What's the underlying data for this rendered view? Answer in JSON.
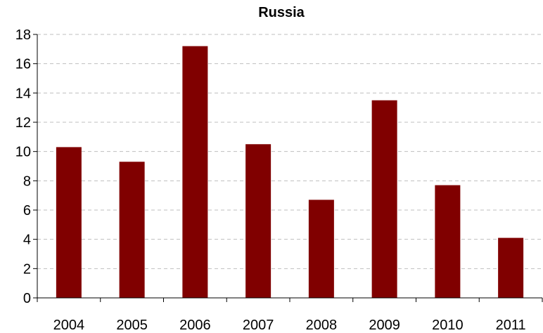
{
  "chart_data": {
    "type": "bar",
    "title": "Russia",
    "xlabel": "",
    "ylabel": "",
    "categories": [
      "2004",
      "2005",
      "2006",
      "2007",
      "2008",
      "2009",
      "2010",
      "2011"
    ],
    "values": [
      10.3,
      9.3,
      17.2,
      10.5,
      6.7,
      13.5,
      7.7,
      4.1
    ],
    "ylim": [
      0,
      18
    ],
    "yticks": [
      0,
      2,
      4,
      6,
      8,
      10,
      12,
      14,
      16,
      18
    ],
    "grid": true,
    "legend": "none",
    "bar_color": "#800000"
  }
}
